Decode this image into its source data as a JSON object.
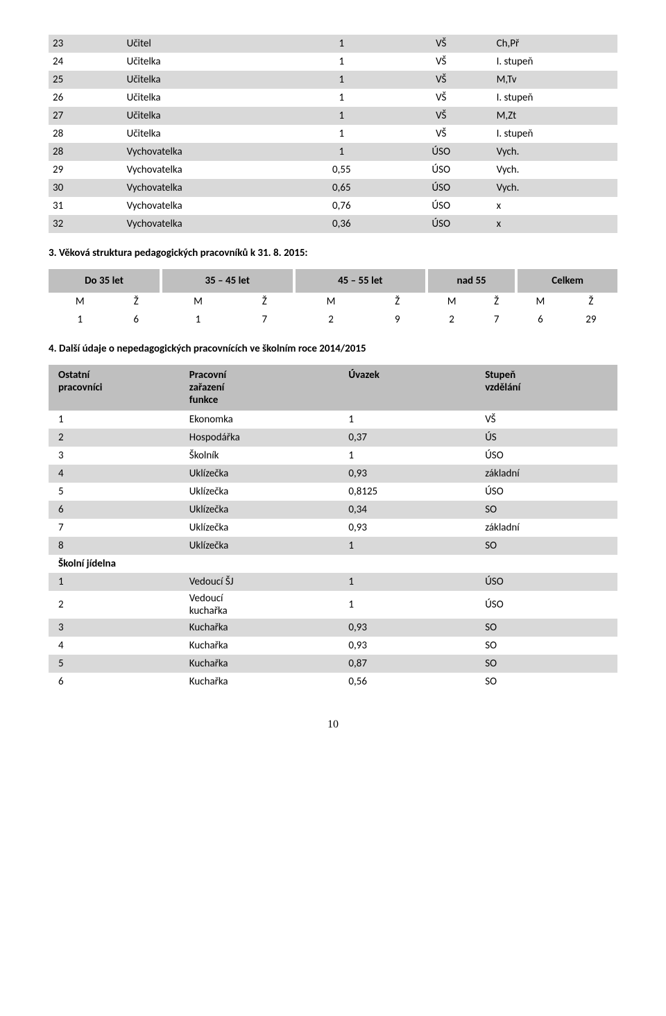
{
  "colors": {
    "shade_light": "#d9d9d9",
    "shade_dark": "#bfbfbf",
    "text": "#000000",
    "bg": "#ffffff"
  },
  "t1": {
    "rows": [
      {
        "n": "23",
        "role": "Učitel",
        "u": "1",
        "ed": "VŠ",
        "note": "Ch,Př",
        "shade": true
      },
      {
        "n": "24",
        "role": "Učitelka",
        "u": "1",
        "ed": "VŠ",
        "note": "I. stupeň",
        "shade": false
      },
      {
        "n": "25",
        "role": "Učitelka",
        "u": "1",
        "ed": "VŠ",
        "note": "M,Tv",
        "shade": true
      },
      {
        "n": "26",
        "role": "Učitelka",
        "u": "1",
        "ed": "VŠ",
        "note": "I. stupeň",
        "shade": false
      },
      {
        "n": "27",
        "role": "Učitelka",
        "u": "1",
        "ed": "VŠ",
        "note": "M,Zt",
        "shade": true
      },
      {
        "n": "28",
        "role": "Učitelka",
        "u": "1",
        "ed": "VŠ",
        "note": "I. stupeň",
        "shade": false
      },
      {
        "n": "28",
        "role": "Vychovatelka",
        "u": "1",
        "ed": "ÚSO",
        "note": "Vych.",
        "shade": true
      },
      {
        "n": "29",
        "role": "Vychovatelka",
        "u": "0,55",
        "ed": "ÚSO",
        "note": "Vych.",
        "shade": false
      },
      {
        "n": "30",
        "role": "Vychovatelka",
        "u": "0,65",
        "ed": "ÚSO",
        "note": "Vych.",
        "shade": true
      },
      {
        "n": "31",
        "role": "Vychovatelka",
        "u": "0,76",
        "ed": "ÚSO",
        "note": "x",
        "shade": false
      },
      {
        "n": "32",
        "role": "Vychovatelka",
        "u": "0,36",
        "ed": "ÚSO",
        "note": "x",
        "shade": true
      }
    ]
  },
  "heading3": "3. Věková struktura pedagogických pracovníků k 31. 8. 2015:",
  "t2": {
    "headers": [
      "Do 35 let",
      "35 – 45 let",
      "45 – 55 let",
      "nad 55",
      "Celkem"
    ],
    "sub": [
      "M",
      "Ž",
      "M",
      "Ž",
      "M",
      "Ž",
      "M",
      "Ž",
      "M",
      "Ž"
    ],
    "vals": [
      "1",
      "6",
      "1",
      "7",
      "2",
      "9",
      "2",
      "7",
      "6",
      "29"
    ]
  },
  "heading4": "4. Další údaje o nepedagogických pracovnících ve školním roce 2014/2015",
  "t3": {
    "headers": {
      "c0a": "Ostatní",
      "c0b": "pracovníci",
      "c1a": "Pracovní",
      "c1b": "zařazení",
      "c1c": "funkce",
      "c2": "Úvazek",
      "c3a": "Stupeň",
      "c3b": "vzdělání"
    },
    "rows": [
      {
        "n": "1",
        "role": "Ekonomka",
        "u": "1",
        "ed": "VŠ",
        "shade": false
      },
      {
        "n": "2",
        "role": "Hospodářka",
        "u": "0,37",
        "ed": "ÚS",
        "shade": true
      },
      {
        "n": "3",
        "role": "Školník",
        "u": "1",
        "ed": "ÚSO",
        "shade": false
      },
      {
        "n": "4",
        "role": "Uklízečka",
        "u": "0,93",
        "ed": "základní",
        "shade": true
      },
      {
        "n": "5",
        "role": "Uklízečka",
        "u": "0,8125",
        "ed": "ÚSO",
        "shade": false
      },
      {
        "n": "6",
        "role": "Uklízečka",
        "u": "0,34",
        "ed": "SO",
        "shade": true
      },
      {
        "n": "7",
        "role": "Uklízečka",
        "u": "0,93",
        "ed": "základní",
        "shade": false
      },
      {
        "n": "8",
        "role": "Uklízečka",
        "u": "1",
        "ed": "SO",
        "shade": true
      },
      {
        "n": "Školní jídelna",
        "role": "",
        "u": "",
        "ed": "",
        "shade": false,
        "bold": true
      },
      {
        "n": "1",
        "role": "Vedoucí ŠJ",
        "u": "1",
        "ed": "ÚSO",
        "shade": true
      },
      {
        "n": "2",
        "role": "Vedoucí\nkuchařka",
        "u": "1",
        "ed": "ÚSO",
        "shade": false,
        "multiline": true
      },
      {
        "n": "3",
        "role": "Kuchařka",
        "u": "0,93",
        "ed": "SO",
        "shade": true
      },
      {
        "n": "4",
        "role": "Kuchařka",
        "u": "0,93",
        "ed": "SO",
        "shade": false
      },
      {
        "n": "5",
        "role": "Kuchařka",
        "u": "0,87",
        "ed": "SO",
        "shade": true
      },
      {
        "n": "6",
        "role": "Kuchařka",
        "u": "0,56",
        "ed": "SO",
        "shade": false
      }
    ]
  },
  "pagenum": "10"
}
